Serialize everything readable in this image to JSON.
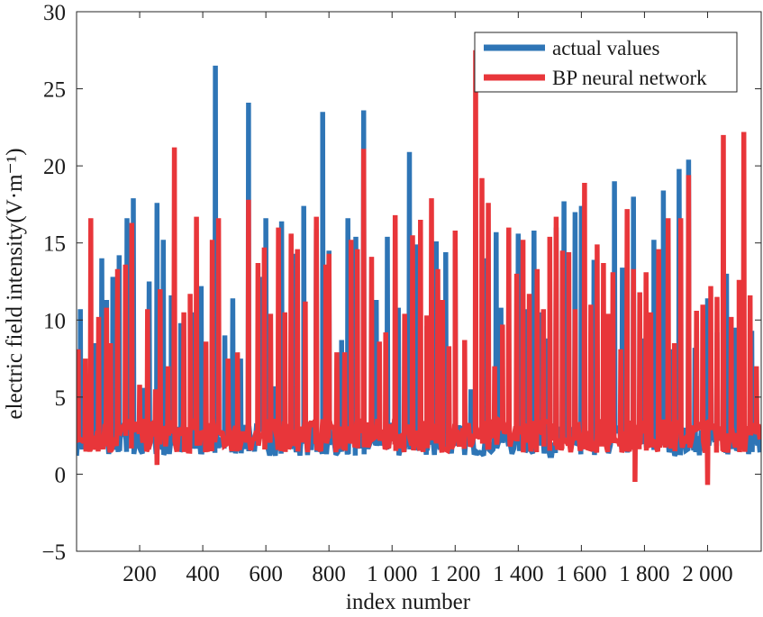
{
  "chart_data": {
    "type": "line",
    "xlabel": "index number",
    "ylabel": "electric field intensity(V·m⁻¹)",
    "xlim": [
      0,
      2170
    ],
    "ylim": [
      -5,
      30
    ],
    "xticks": [
      200,
      400,
      600,
      800,
      1000,
      1200,
      1400,
      1600,
      1800,
      2000
    ],
    "xtick_labels": [
      "200",
      "400",
      "600",
      "800",
      "1 000",
      "1 200",
      "1 400",
      "1 600",
      "1 800",
      "2 000"
    ],
    "yticks": [
      -5,
      0,
      5,
      10,
      15,
      20,
      25,
      30
    ],
    "ytick_labels": [
      "−5",
      "0",
      "5",
      "10",
      "15",
      "20",
      "25",
      "30"
    ],
    "legend_position": "top-right",
    "grid": false,
    "baseline_range": [
      1.2,
      3.5
    ],
    "series": [
      {
        "name": "actual values",
        "color": "#2e75b6",
        "peaks": [
          [
            12,
            10.7
          ],
          [
            55,
            8.5
          ],
          [
            80,
            14.0
          ],
          [
            95,
            11.3
          ],
          [
            115,
            12.8
          ],
          [
            135,
            14.2
          ],
          [
            160,
            16.6
          ],
          [
            180,
            17.9
          ],
          [
            210,
            5.6
          ],
          [
            230,
            12.5
          ],
          [
            255,
            17.6
          ],
          [
            275,
            15.2
          ],
          [
            300,
            11.6
          ],
          [
            330,
            9.8
          ],
          [
            370,
            10.5
          ],
          [
            395,
            12.2
          ],
          [
            440,
            26.5
          ],
          [
            470,
            9.0
          ],
          [
            495,
            11.4
          ],
          [
            520,
            7.5
          ],
          [
            545,
            24.1
          ],
          [
            580,
            12.8
          ],
          [
            600,
            16.6
          ],
          [
            625,
            5.7
          ],
          [
            650,
            16.4
          ],
          [
            690,
            14.3
          ],
          [
            720,
            17.4
          ],
          [
            760,
            15.9
          ],
          [
            780,
            23.5
          ],
          [
            800,
            14.5
          ],
          [
            840,
            8.7
          ],
          [
            860,
            16.6
          ],
          [
            885,
            15.4
          ],
          [
            910,
            23.6
          ],
          [
            950,
            11.3
          ],
          [
            985,
            15.4
          ],
          [
            1020,
            10.8
          ],
          [
            1055,
            20.9
          ],
          [
            1080,
            14.9
          ],
          [
            1110,
            9.6
          ],
          [
            1140,
            15.1
          ],
          [
            1170,
            14.4
          ],
          [
            1200,
            14.6
          ],
          [
            1250,
            5.5
          ],
          [
            1300,
            14.0
          ],
          [
            1330,
            15.7
          ],
          [
            1345,
            10.8
          ],
          [
            1400,
            15.6
          ],
          [
            1420,
            10.7
          ],
          [
            1450,
            15.8
          ],
          [
            1470,
            10.5
          ],
          [
            1490,
            8.8
          ],
          [
            1520,
            16.0
          ],
          [
            1545,
            17.7
          ],
          [
            1580,
            17.0
          ],
          [
            1600,
            17.4
          ],
          [
            1640,
            13.9
          ],
          [
            1680,
            6.4
          ],
          [
            1705,
            19.0
          ],
          [
            1730,
            13.4
          ],
          [
            1765,
            18.0
          ],
          [
            1790,
            8.8
          ],
          [
            1830,
            15.2
          ],
          [
            1860,
            18.4
          ],
          [
            1890,
            8.1
          ],
          [
            1910,
            19.8
          ],
          [
            1940,
            20.4
          ],
          [
            1960,
            8.2
          ],
          [
            2000,
            11.4
          ],
          [
            2030,
            9.2
          ],
          [
            2060,
            13.0
          ],
          [
            2090,
            9.5
          ],
          [
            2140,
            9.3
          ],
          [
            2160,
            3.0
          ]
        ]
      },
      {
        "name": "BP neural network",
        "color": "#e8363a",
        "peaks": [
          [
            5,
            8.1
          ],
          [
            28,
            7.5
          ],
          [
            45,
            16.6
          ],
          [
            70,
            10.2
          ],
          [
            95,
            10.8
          ],
          [
            108,
            8.5
          ],
          [
            130,
            13.3
          ],
          [
            155,
            13.6
          ],
          [
            175,
            16.3
          ],
          [
            200,
            5.8
          ],
          [
            225,
            10.7
          ],
          [
            250,
            5.5
          ],
          [
            265,
            12.0
          ],
          [
            290,
            7.0
          ],
          [
            310,
            21.2
          ],
          [
            340,
            10.5
          ],
          [
            360,
            11.7
          ],
          [
            380,
            16.7
          ],
          [
            410,
            8.6
          ],
          [
            430,
            15.2
          ],
          [
            450,
            16.6
          ],
          [
            480,
            7.5
          ],
          [
            510,
            7.9
          ],
          [
            545,
            17.8
          ],
          [
            575,
            13.7
          ],
          [
            595,
            14.7
          ],
          [
            615,
            10.4
          ],
          [
            640,
            16.0
          ],
          [
            660,
            10.5
          ],
          [
            680,
            15.6
          ],
          [
            700,
            14.6
          ],
          [
            725,
            11.2
          ],
          [
            760,
            16.7
          ],
          [
            790,
            13.6
          ],
          [
            800,
            14.3
          ],
          [
            825,
            7.9
          ],
          [
            850,
            7.9
          ],
          [
            870,
            15.2
          ],
          [
            890,
            14.6
          ],
          [
            910,
            21.1
          ],
          [
            935,
            14.1
          ],
          [
            960,
            8.6
          ],
          [
            980,
            9.2
          ],
          [
            1010,
            16.8
          ],
          [
            1040,
            10.4
          ],
          [
            1065,
            15.5
          ],
          [
            1090,
            16.5
          ],
          [
            1110,
            10.3
          ],
          [
            1125,
            17.9
          ],
          [
            1145,
            13.3
          ],
          [
            1160,
            11.3
          ],
          [
            1180,
            8.3
          ],
          [
            1200,
            15.8
          ],
          [
            1230,
            8.7
          ],
          [
            1265,
            27.5
          ],
          [
            1285,
            19.2
          ],
          [
            1305,
            17.6
          ],
          [
            1325,
            7.0
          ],
          [
            1350,
            9.7
          ],
          [
            1370,
            16.0
          ],
          [
            1395,
            13.0
          ],
          [
            1415,
            15.2
          ],
          [
            1435,
            11.7
          ],
          [
            1460,
            13.3
          ],
          [
            1480,
            10.7
          ],
          [
            1500,
            15.4
          ],
          [
            1520,
            16.7
          ],
          [
            1540,
            14.5
          ],
          [
            1560,
            14.4
          ],
          [
            1580,
            10.7
          ],
          [
            1610,
            18.9
          ],
          [
            1630,
            11.0
          ],
          [
            1650,
            14.9
          ],
          [
            1670,
            13.7
          ],
          [
            1685,
            10.4
          ],
          [
            1700,
            13.1
          ],
          [
            1725,
            8.1
          ],
          [
            1745,
            17.2
          ],
          [
            1765,
            13.3
          ],
          [
            1785,
            11.8
          ],
          [
            1805,
            13.1
          ],
          [
            1820,
            10.5
          ],
          [
            1845,
            14.6
          ],
          [
            1875,
            16.6
          ],
          [
            1895,
            8.5
          ],
          [
            1915,
            16.6
          ],
          [
            1940,
            19.4
          ],
          [
            1965,
            10.6
          ],
          [
            1985,
            11.0
          ],
          [
            2010,
            12.2
          ],
          [
            2030,
            11.5
          ],
          [
            2050,
            22.0
          ],
          [
            2075,
            10.2
          ],
          [
            2100,
            12.6
          ],
          [
            2115,
            22.2
          ],
          [
            2135,
            11.6
          ],
          [
            2155,
            7.0
          ]
        ],
        "dips": [
          [
            255,
            0.6
          ],
          [
            1770,
            -0.5
          ],
          [
            2000,
            -0.7
          ]
        ]
      }
    ]
  }
}
